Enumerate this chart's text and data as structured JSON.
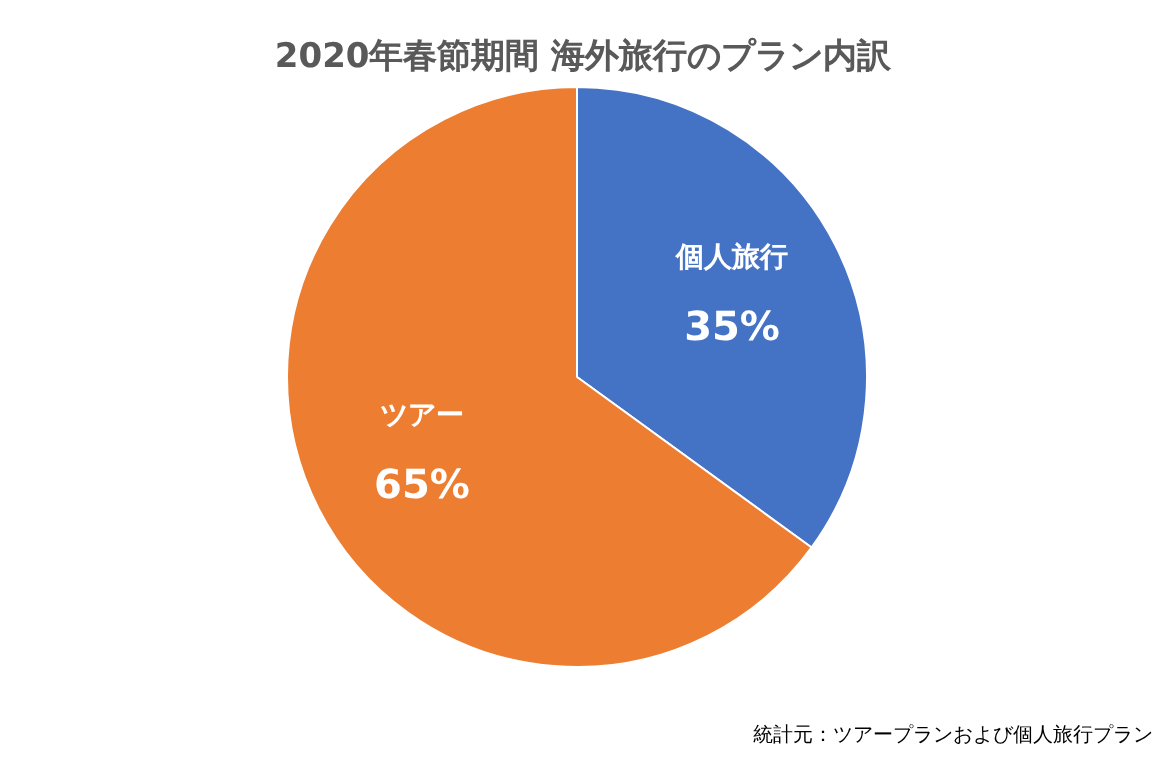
{
  "chart_data": {
    "type": "pie",
    "title": "2020年春節期間  海外旅行のプラン内訳",
    "categories": [
      "個人旅行",
      "ツアー"
    ],
    "values": [
      35,
      65
    ],
    "colors": [
      "#4472c4",
      "#ed7d31"
    ],
    "value_labels": [
      "35%",
      "65%"
    ],
    "annotations": [
      "統計元：ツアープランおよび個人旅行プラン"
    ]
  }
}
